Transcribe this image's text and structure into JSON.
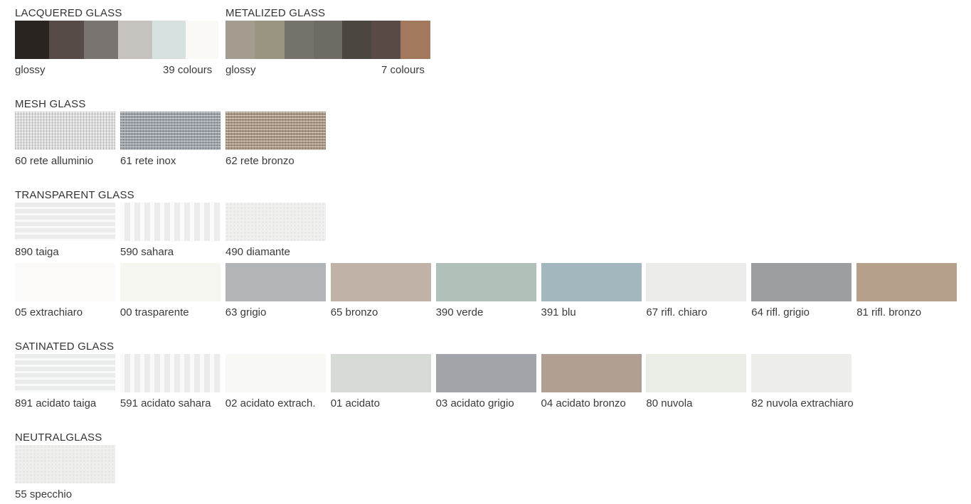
{
  "lacquered": {
    "title": "LACQUERED GLASS",
    "finish": "glossy",
    "count": "39 colours",
    "colors": [
      "#2a2420",
      "#564b47",
      "#79746f",
      "#c6c2be",
      "#d7e1df",
      "#faf9f6"
    ]
  },
  "metalized": {
    "title": "METALIZED GLASS",
    "finish": "glossy",
    "count": "7 colours",
    "colors": [
      "#a39c8f",
      "#999580",
      "#75716b",
      "#6e6a64",
      "#4b463f",
      "#5a4a46",
      "#a4785f"
    ]
  },
  "mesh": {
    "title": "MESH GLASS",
    "items": [
      {
        "label": "60 rete alluminio",
        "color": "#dcdcdc"
      },
      {
        "label": "61 rete inox",
        "color": "#9aa0a5"
      },
      {
        "label": "62 rete bronzo",
        "color": "#a89680"
      }
    ]
  },
  "transparent": {
    "title": "TRANSPARENT GLASS",
    "row1": [
      {
        "label": "890 taiga",
        "color": "#f0f0f0"
      },
      {
        "label": "590 sahara",
        "color": "#f2f2f2"
      },
      {
        "label": "490 diamante",
        "color": "#efefed"
      }
    ],
    "row2": [
      {
        "label": "05 extrachiaro",
        "color": "#fbfaf8"
      },
      {
        "label": "00 trasparente",
        "color": "#f6f6f1"
      },
      {
        "label": "63 grigio",
        "color": "#b2b5b8"
      },
      {
        "label": "65 bronzo",
        "color": "#c1b2a7"
      },
      {
        "label": "390 verde",
        "color": "#b1c1b9"
      },
      {
        "label": "391 blu",
        "color": "#a3b7bf"
      },
      {
        "label": "67 rifl. chiaro",
        "color": "#ebebe9"
      },
      {
        "label": "64 rifl. grigio",
        "color": "#9d9e9f"
      },
      {
        "label": "81 rifl. bronzo",
        "color": "#b7a08b"
      }
    ]
  },
  "satinated": {
    "title": "SATINATED GLASS",
    "items": [
      {
        "label": "891 acidato taiga",
        "color": "#eff0f0"
      },
      {
        "label": "591 acidato sahara",
        "color": "#f1f1f1"
      },
      {
        "label": "02 acidato extrach.",
        "color": "#f8f8f5"
      },
      {
        "label": "01 acidato",
        "color": "#d6dbd6"
      },
      {
        "label": "03 acidato grigio",
        "color": "#a1a5a9"
      },
      {
        "label": "04 acidato bronzo",
        "color": "#b19f93"
      },
      {
        "label": "80 nuvola",
        "color": "#eaece6"
      },
      {
        "label": "82 nuvola extrachiaro",
        "color": "#ededea"
      }
    ]
  },
  "neutral": {
    "title": "NEUTRALGLASS",
    "items": [
      {
        "label": "55 specchio",
        "color": "#eeeeec"
      }
    ]
  }
}
